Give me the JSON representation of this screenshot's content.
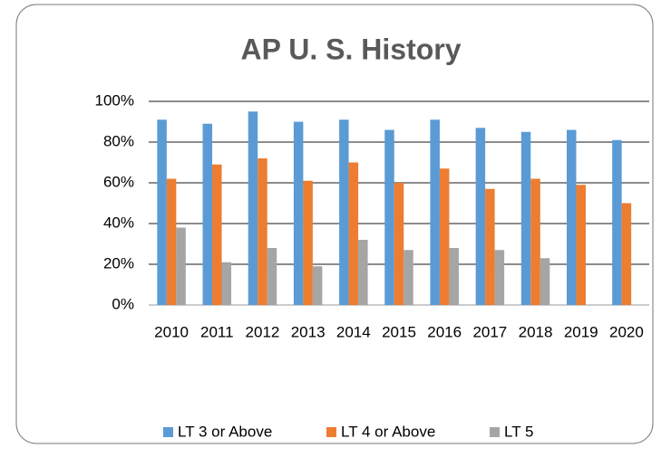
{
  "chart_data": {
    "type": "bar",
    "title": "AP U. S. History",
    "categories": [
      "2010",
      "2011",
      "2012",
      "2013",
      "2014",
      "2015",
      "2016",
      "2017",
      "2018",
      "2019",
      "2020"
    ],
    "series": [
      {
        "name": "LT 3 or Above",
        "color": "#5b9bd5",
        "values": [
          91,
          89,
          95,
          90,
          91,
          86,
          91,
          87,
          85,
          86,
          81
        ]
      },
      {
        "name": "LT 4 or Above",
        "color": "#ed7d31",
        "values": [
          62,
          69,
          72,
          61,
          70,
          60,
          67,
          57,
          62,
          59,
          50
        ]
      },
      {
        "name": "LT 5",
        "color": "#a5a5a5",
        "values": [
          38,
          21,
          28,
          19,
          32,
          27,
          28,
          27,
          23,
          null,
          null
        ]
      }
    ],
    "ylim": [
      0,
      100
    ],
    "yticks": [
      {
        "value": 0,
        "label": "0%"
      },
      {
        "value": 20,
        "label": "20%"
      },
      {
        "value": 40,
        "label": "40%"
      },
      {
        "value": 60,
        "label": "60%"
      },
      {
        "value": 80,
        "label": "80%"
      },
      {
        "value": 100,
        "label": "100%"
      }
    ],
    "grid": true,
    "legend": "bottom"
  }
}
